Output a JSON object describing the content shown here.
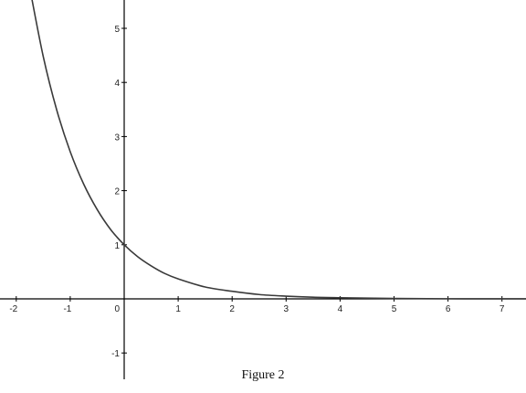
{
  "figure": {
    "caption": "Figure 2"
  },
  "chart_data": {
    "type": "line",
    "title": "",
    "xlabel": "",
    "ylabel": "",
    "xlim": [
      -2.1,
      7.45
    ],
    "ylim": [
      -1.25,
      5.55
    ],
    "x_ticks": [
      -2,
      -1,
      1,
      2,
      3,
      4,
      5,
      6,
      7
    ],
    "y_ticks": [
      -1,
      1,
      2,
      3,
      4,
      5
    ],
    "origin_label": "0",
    "grid": false,
    "curve_color": "#3a3a3a",
    "axis_color": "#000000",
    "series": [
      {
        "x": [
          -1.75,
          -1.5,
          -1.25,
          -1,
          -0.75,
          -0.5,
          -0.25,
          0,
          0.25,
          0.5,
          0.75,
          1,
          1.5,
          2,
          2.5,
          3,
          3.5,
          4,
          5,
          6,
          7,
          7.45
        ],
        "y": [
          5.75,
          4.48,
          3.49,
          2.72,
          2.12,
          1.65,
          1.28,
          1.0,
          0.78,
          0.61,
          0.47,
          0.37,
          0.22,
          0.14,
          0.08,
          0.05,
          0.03,
          0.02,
          0.007,
          0.002,
          0.001,
          0.0006
        ]
      }
    ]
  }
}
